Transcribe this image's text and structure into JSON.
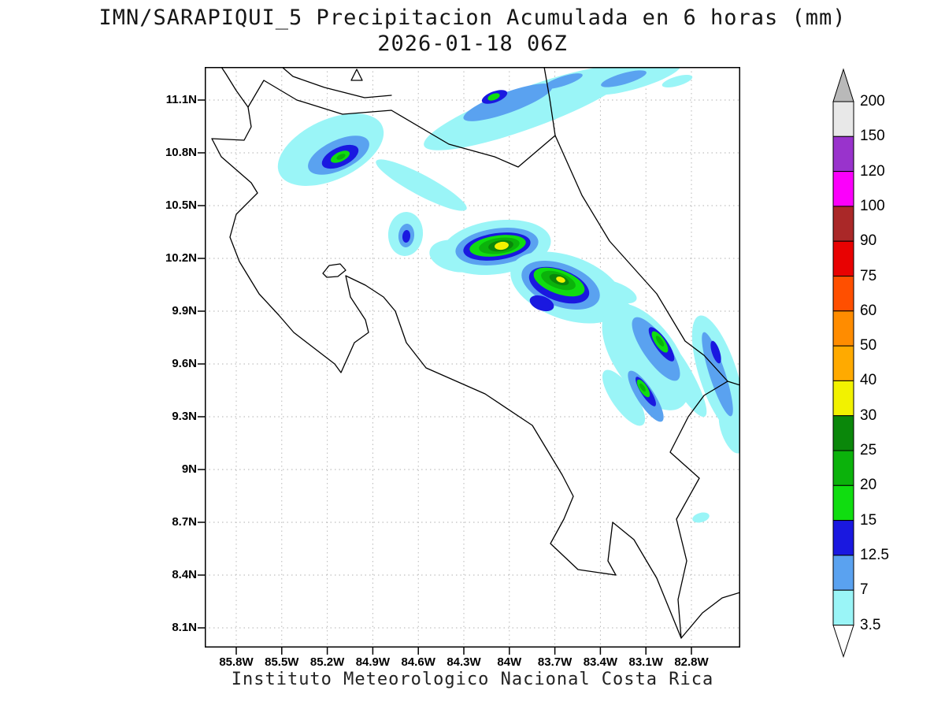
{
  "title": {
    "line1": "IMN/SARAPIQUI_5 Precipitacion Acumulada en 6 horas (mm)",
    "line2": "2026-01-18 06Z"
  },
  "footer": "Instituto Meteorologico Nacional Costa Rica",
  "axes": {
    "y_ticks": [
      "11.1N",
      "10.8N",
      "10.5N",
      "10.2N",
      "9.9N",
      "9.6N",
      "9.3N",
      "9N",
      "8.7N",
      "8.4N",
      "8.1N"
    ],
    "x_ticks": [
      "85.8W",
      "85.5W",
      "85.2W",
      "84.9W",
      "84.6W",
      "84.3W",
      "84W",
      "83.7W",
      "83.4W",
      "83.1W",
      "82.8W"
    ]
  },
  "colorbar": {
    "units": "mm",
    "over_color": "#b9b9b9",
    "under_color": "#ffffff",
    "levels": [
      "200",
      "150",
      "120",
      "100",
      "90",
      "75",
      "60",
      "50",
      "40",
      "30",
      "25",
      "20",
      "15",
      "12.5",
      "7",
      "3.5"
    ],
    "segment_colors": [
      "#e8e8e8",
      "#9933cc",
      "#fb00fb",
      "#aa2828",
      "#e80202",
      "#ff4f00",
      "#ff8c00",
      "#ffaa00",
      "#f2f200",
      "#0a870a",
      "#0bb20b",
      "#10dd10",
      "#1a18e0",
      "#5aa2f0",
      "#9af5f7"
    ],
    "palette": {
      "3.5": "#9af5f7",
      "7": "#5aa2f0",
      "12.5": "#1a18e0",
      "15": "#10dd10",
      "20": "#0bb20b",
      "25": "#0a870a",
      "30": "#f2f200"
    }
  },
  "map": {
    "region": "Costa Rica",
    "units": "mm",
    "precip_cells": [
      {
        "location": "northern border diagonal band",
        "peak_range_mm": "15-20"
      },
      {
        "location": "Guanacaste north cluster",
        "peak_range_mm": "20-25"
      },
      {
        "location": "small cell west of central valley",
        "peak_range_mm": "12.5-15"
      },
      {
        "location": "central cluster west cell",
        "peak_range_mm": "30-40"
      },
      {
        "location": "central cluster east cell",
        "peak_range_mm": "30-40"
      },
      {
        "location": "southern Caribbean slope streaks",
        "peak_range_mm": "20-25"
      },
      {
        "location": "southeast coastal edge band",
        "peak_range_mm": "12.5-15"
      },
      {
        "location": "isolated light cell far south",
        "peak_range_mm": "3.5-7"
      }
    ]
  }
}
